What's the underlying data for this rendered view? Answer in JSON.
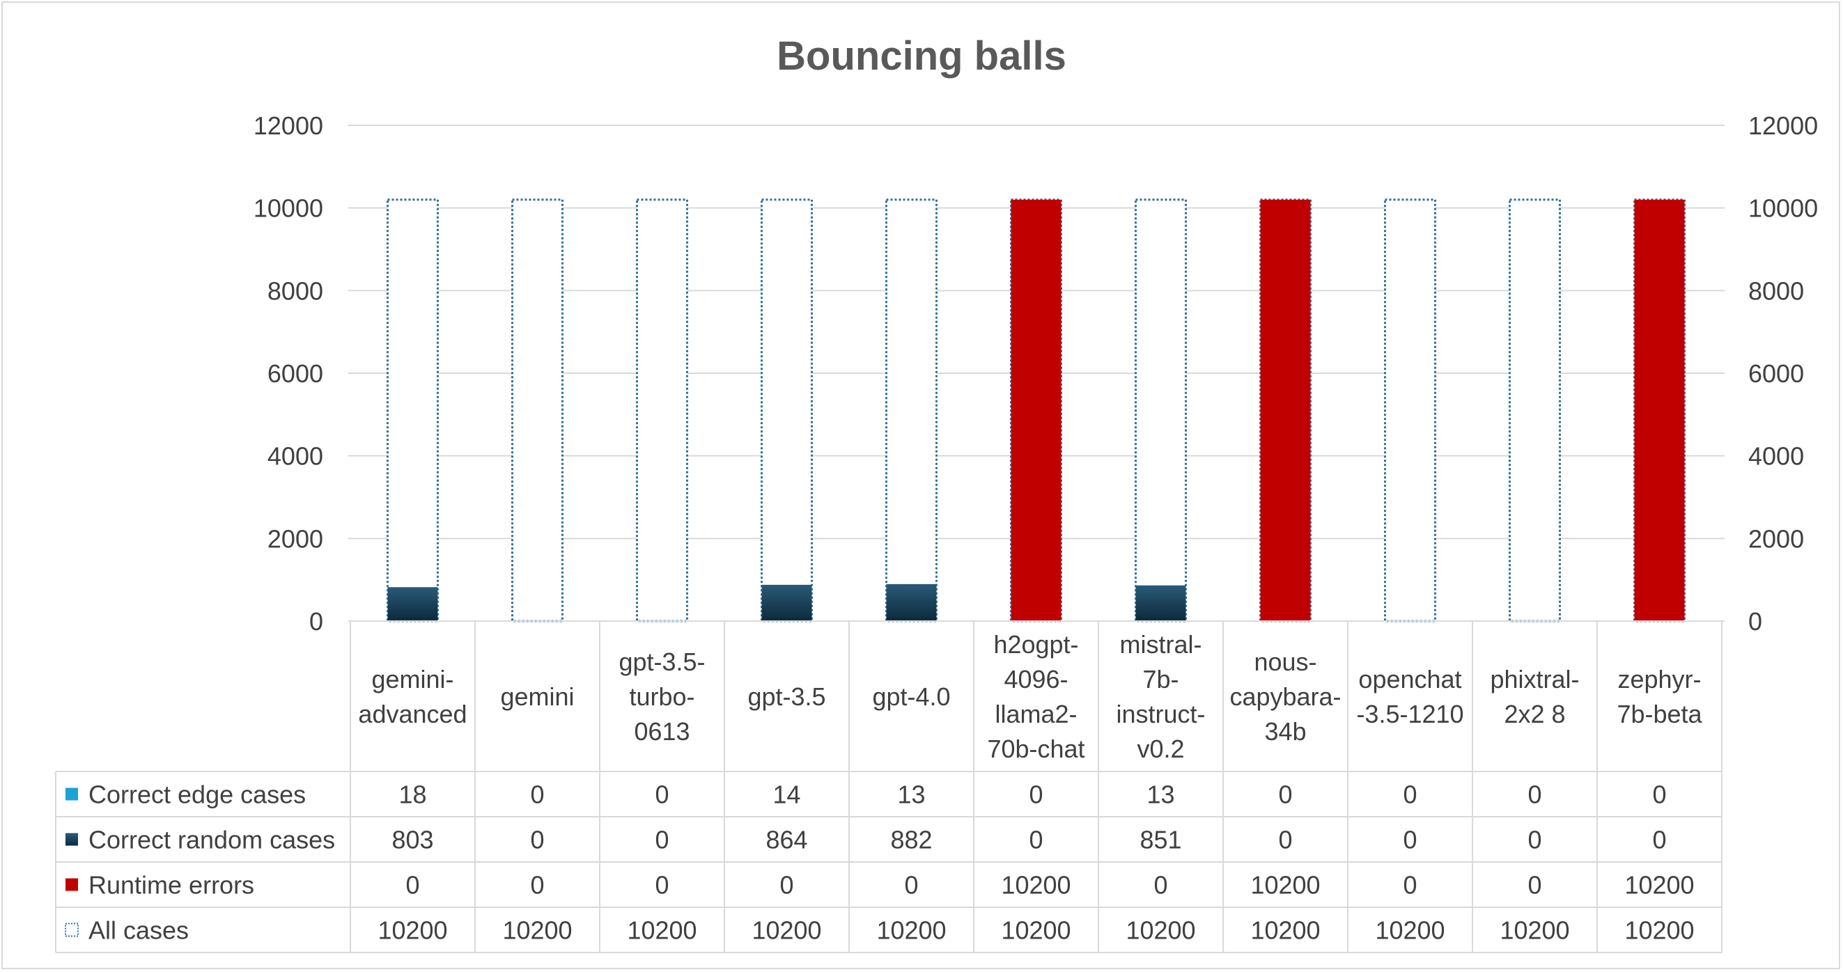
{
  "chart_data": {
    "type": "bar",
    "title": "Bouncing balls",
    "categories": [
      [
        "gemini-",
        "advanced"
      ],
      [
        "gemini"
      ],
      [
        "gpt-3.5-",
        "turbo-",
        "0613"
      ],
      [
        "gpt-3.5"
      ],
      [
        "gpt-4.0"
      ],
      [
        "h2ogpt-",
        "4096-",
        "llama2-",
        "70b-chat"
      ],
      [
        "mistral-",
        "7b-",
        "instruct-",
        "v0.2"
      ],
      [
        "nous-",
        "capybara-",
        "34b"
      ],
      [
        "openchat",
        "-3.5-1210"
      ],
      [
        "phixtral-",
        "2x2 8"
      ],
      [
        "zephyr-",
        "7b-beta"
      ]
    ],
    "series": [
      {
        "name": "Correct edge cases",
        "values": [
          18,
          0,
          0,
          14,
          13,
          0,
          13,
          0,
          0,
          0,
          0
        ]
      },
      {
        "name": "Correct random cases",
        "values": [
          803,
          0,
          0,
          864,
          882,
          0,
          851,
          0,
          0,
          0,
          0
        ]
      },
      {
        "name": "Runtime errors",
        "values": [
          0,
          0,
          0,
          0,
          0,
          10200,
          0,
          10200,
          0,
          0,
          10200
        ]
      },
      {
        "name": "All cases",
        "values": [
          10200,
          10200,
          10200,
          10200,
          10200,
          10200,
          10200,
          10200,
          10200,
          10200,
          10200
        ]
      }
    ],
    "yticks": [
      "0",
      "2000",
      "4000",
      "6000",
      "8000",
      "10000",
      "12000"
    ],
    "ylim": [
      0,
      12000
    ],
    "grid": true,
    "legend": "data-table",
    "colors": {
      "edge": "#1aa3d6",
      "random_top": "#2a5a78",
      "random_bottom": "#0d2a3c",
      "runtime": "#c00000",
      "all_border": "#2f6f9f",
      "grid": "#d9d9d9",
      "table": "#d9d9d9",
      "text": "#404040",
      "title": "#595959"
    }
  }
}
